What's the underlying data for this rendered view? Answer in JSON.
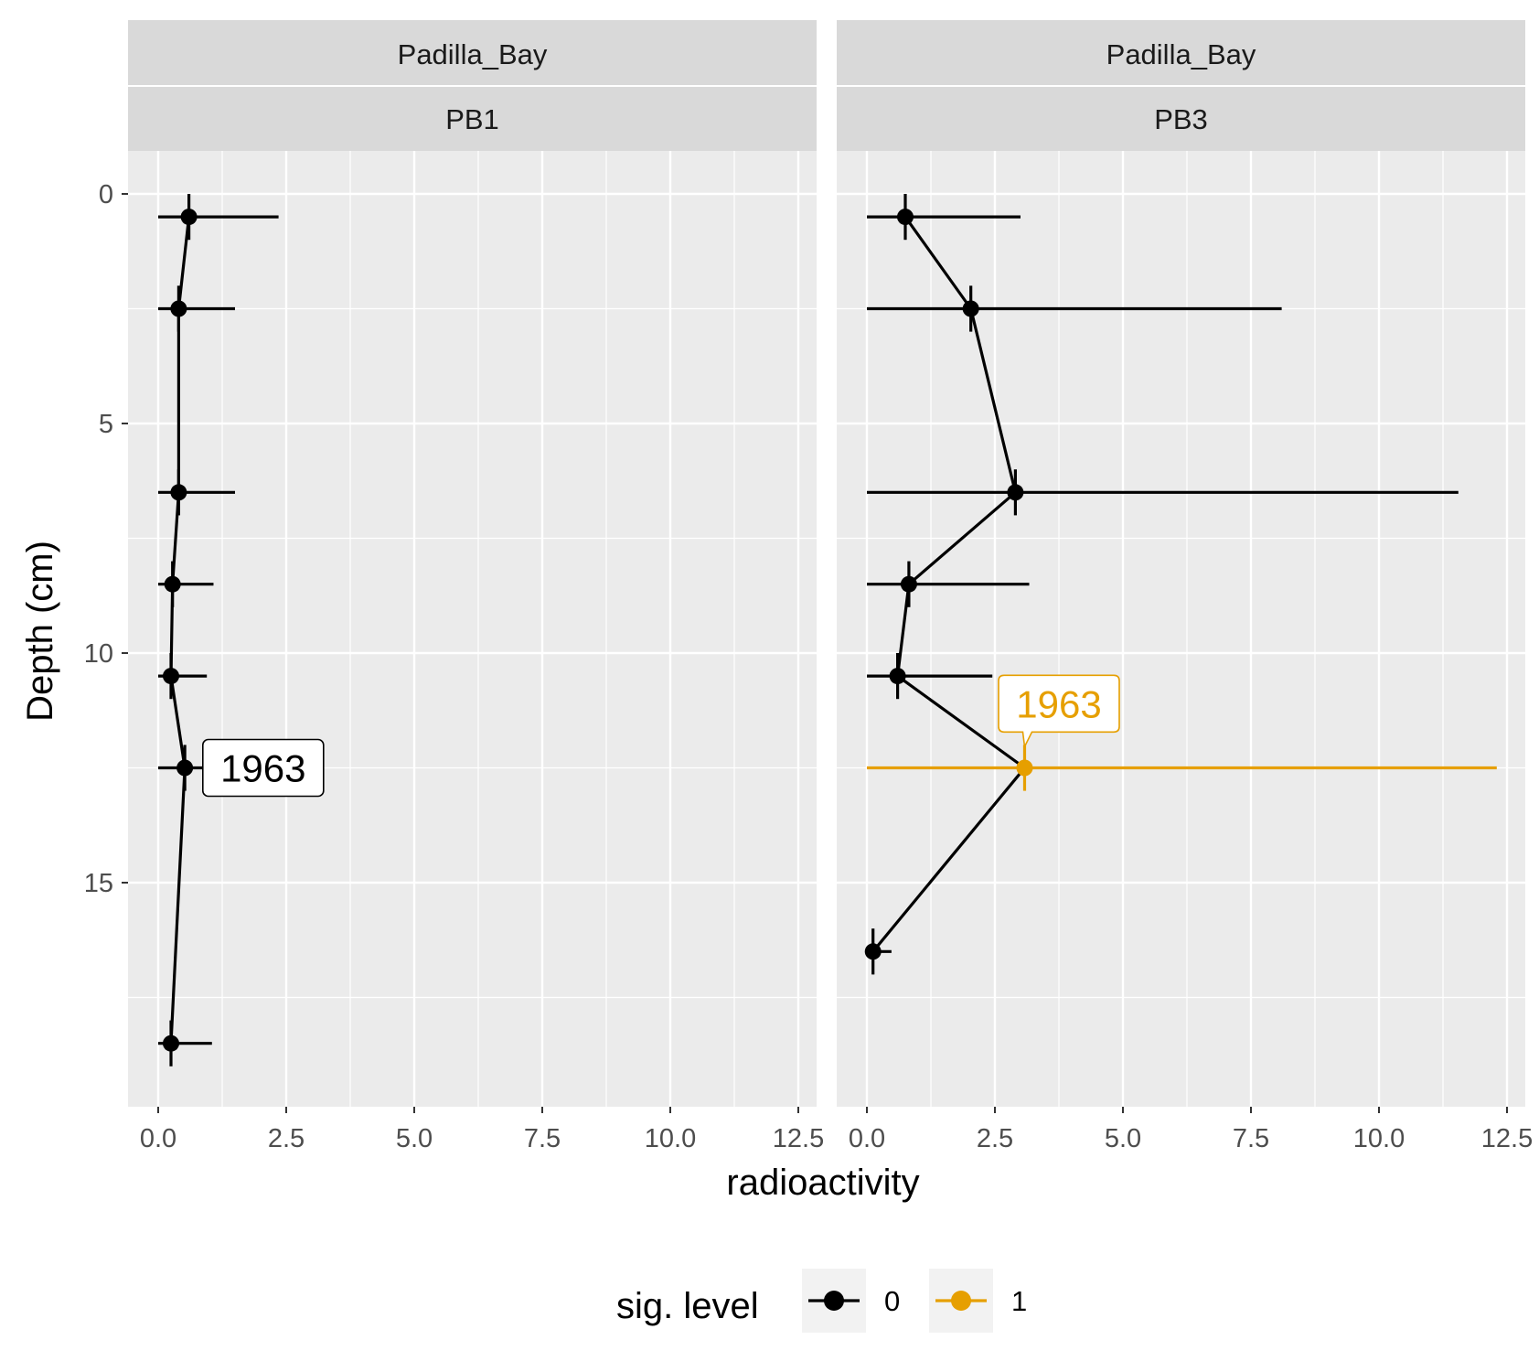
{
  "chart_data": {
    "type": "scatter",
    "xlabel": "radioactivity",
    "ylabel": "Depth (cm)",
    "xlim": [
      0,
      12.5
    ],
    "ylim": [
      0,
      20
    ],
    "y_reversed": true,
    "x_ticks": [
      "0.0",
      "2.5",
      "5.0",
      "7.5",
      "10.0",
      "12.5"
    ],
    "y_ticks": [
      "0",
      "5",
      "10",
      "15"
    ],
    "grid": true,
    "legend": {
      "title": "sig. level",
      "position": "bottom",
      "entries": [
        {
          "label": "0",
          "color": "#000000"
        },
        {
          "label": "1",
          "color": "#E69F00"
        }
      ]
    },
    "panels": [
      {
        "strip_top": "Padilla_Bay",
        "strip_bottom": "PB1",
        "points": [
          {
            "depth": 0.5,
            "x": 0.6,
            "xmin": 0.0,
            "xmax": 2.35,
            "depth_err": 0.5,
            "sig": 0
          },
          {
            "depth": 2.5,
            "x": 0.4,
            "xmin": 0.0,
            "xmax": 1.5,
            "depth_err": 0.5,
            "sig": 0
          },
          {
            "depth": 6.5,
            "x": 0.4,
            "xmin": 0.0,
            "xmax": 1.5,
            "depth_err": 0.5,
            "sig": 0
          },
          {
            "depth": 8.5,
            "x": 0.28,
            "xmin": 0.0,
            "xmax": 1.08,
            "depth_err": 0.5,
            "sig": 0
          },
          {
            "depth": 10.5,
            "x": 0.25,
            "xmin": 0.0,
            "xmax": 0.95,
            "depth_err": 0.5,
            "sig": 0
          },
          {
            "depth": 12.5,
            "x": 0.52,
            "xmin": 0.0,
            "xmax": 1.1,
            "depth_err": 0.5,
            "sig": 0
          },
          {
            "depth": 18.5,
            "x": 0.25,
            "xmin": 0.0,
            "xmax": 1.05,
            "depth_err": 0.5,
            "sig": 0
          }
        ],
        "label": {
          "text": "1963",
          "depth": 12.5,
          "x": 2.05,
          "sig": 0
        }
      },
      {
        "strip_top": "Padilla_Bay",
        "strip_bottom": "PB3",
        "points": [
          {
            "depth": 0.5,
            "x": 0.75,
            "xmin": 0.0,
            "xmax": 3.0,
            "depth_err": 0.5,
            "sig": 0
          },
          {
            "depth": 2.5,
            "x": 2.03,
            "xmin": 0.0,
            "xmax": 8.1,
            "depth_err": 0.5,
            "sig": 0
          },
          {
            "depth": 6.5,
            "x": 2.9,
            "xmin": 0.0,
            "xmax": 11.55,
            "depth_err": 0.5,
            "sig": 0
          },
          {
            "depth": 8.5,
            "x": 0.82,
            "xmin": 0.0,
            "xmax": 3.17,
            "depth_err": 0.5,
            "sig": 0
          },
          {
            "depth": 10.5,
            "x": 0.6,
            "xmin": 0.0,
            "xmax": 2.45,
            "depth_err": 0.5,
            "sig": 0
          },
          {
            "depth": 12.5,
            "x": 3.08,
            "xmin": 0.0,
            "xmax": 12.3,
            "depth_err": 0.5,
            "sig": 1
          },
          {
            "depth": 16.5,
            "x": 0.12,
            "xmin": 0.0,
            "xmax": 0.48,
            "depth_err": 0.5,
            "sig": 0
          }
        ],
        "label": {
          "text": "1963",
          "depth": 11.5,
          "x": 3.75,
          "sig": 1
        }
      }
    ]
  }
}
